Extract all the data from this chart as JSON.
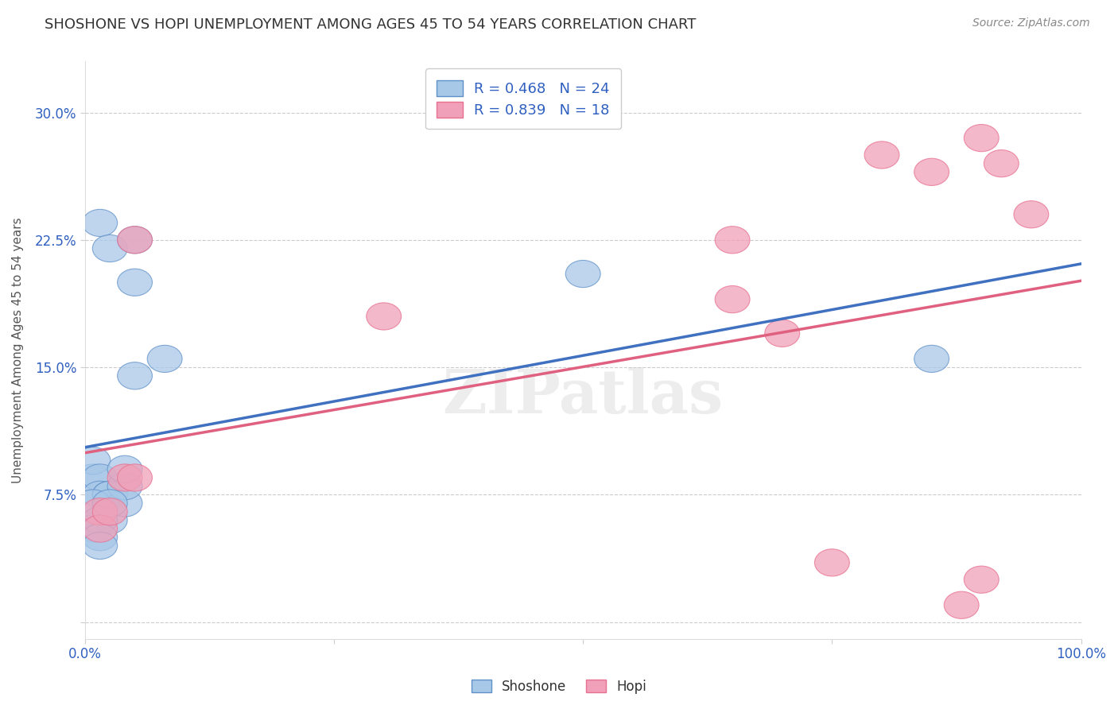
{
  "title": "SHOSHONE VS HOPI UNEMPLOYMENT AMONG AGES 45 TO 54 YEARS CORRELATION CHART",
  "source": "Source: ZipAtlas.com",
  "xlabel": "",
  "ylabel": "Unemployment Among Ages 45 to 54 years",
  "xlim": [
    0,
    100
  ],
  "ylim": [
    -1,
    33
  ],
  "yticks": [
    0,
    7.5,
    15,
    22.5,
    30
  ],
  "xticks": [
    0,
    25,
    50,
    75,
    100
  ],
  "xtick_labels": [
    "0.0%",
    "",
    "",
    "",
    "100.0%"
  ],
  "ytick_labels": [
    "",
    "7.5%",
    "15.0%",
    "22.5%",
    "30.0%"
  ],
  "shoshone_color": "#A8C8E8",
  "hopi_color": "#F0A0B8",
  "shoshone_edge_color": "#6090C8",
  "hopi_edge_color": "#E87090",
  "shoshone_line_color": "#4070C0",
  "hopi_line_color": "#E06080",
  "dash_line_color": "#AAAAAA",
  "R_shoshone": 0.468,
  "N_shoshone": 24,
  "R_hopi": 0.839,
  "N_hopi": 18,
  "shoshone_x": [
    1.5,
    2.5,
    5,
    5,
    8,
    0.8,
    0.8,
    1.5,
    1.5,
    2.5,
    2.5,
    2.5,
    4,
    4,
    4,
    5,
    0.8,
    0.8,
    1.5,
    1.5,
    1.5,
    2.5,
    50,
    85
  ],
  "shoshone_y": [
    23.5,
    22.0,
    22.5,
    14.5,
    15.5,
    8.5,
    9.5,
    8.5,
    7.5,
    7.5,
    6.0,
    7.5,
    7.0,
    8.0,
    9.0,
    20.0,
    7.0,
    5.5,
    6.0,
    5.0,
    4.5,
    7.0,
    20.5,
    15.5
  ],
  "hopi_x": [
    4,
    5,
    5,
    1.5,
    1.5,
    2.5,
    30,
    65,
    65,
    70,
    75,
    80,
    85,
    88,
    90,
    90,
    92,
    95
  ],
  "hopi_y": [
    8.5,
    8.5,
    22.5,
    6.5,
    5.5,
    6.5,
    18.0,
    22.5,
    19.0,
    17.0,
    3.5,
    27.5,
    26.5,
    1.0,
    2.5,
    28.5,
    27.0,
    24.0
  ],
  "background_color": "#FFFFFF",
  "grid_color": "#CCCCCC",
  "watermark": "ZIPatlas",
  "title_fontsize": 13,
  "axis_label_fontsize": 11,
  "tick_fontsize": 12,
  "legend_fontsize": 13
}
